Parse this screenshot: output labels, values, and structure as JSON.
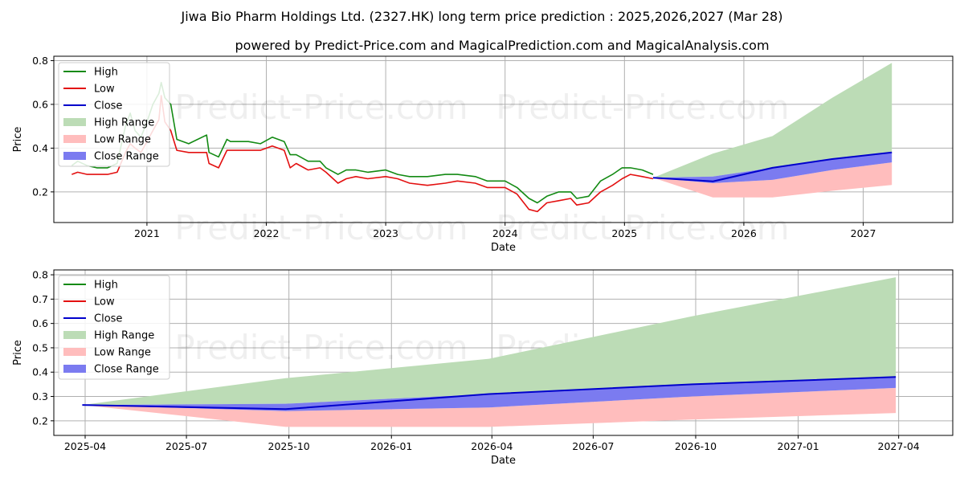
{
  "title": "Jiwa Bio Pharm Holdings Ltd. (2327.HK) long term price prediction : 2025,2026,2027 (Mar 28)",
  "subtitle": "powered by Predict-Price.com and MagicalPrediction.com and MagicalAnalysis.com",
  "watermark": "Predict-Price.com",
  "colors": {
    "high": "#138a13",
    "low": "#e31010",
    "close": "#0000cc",
    "high_range": "#bcdcb6",
    "low_range": "#ffbdbd",
    "close_range": "#7b7bf0",
    "grid": "#b0b0b0"
  },
  "chart_data": [
    {
      "type": "line",
      "name": "history-and-forecast",
      "xlabel": "Date",
      "ylabel": "Price",
      "xlim": [
        2020.22,
        2027.75
      ],
      "ylim": [
        0.06,
        0.82
      ],
      "x_ticks": [
        2021,
        2022,
        2023,
        2024,
        2025,
        2026,
        2027
      ],
      "x_tick_labels": [
        "2021",
        "2022",
        "2023",
        "2024",
        "2025",
        "2026",
        "2027"
      ],
      "y_ticks": [
        0.2,
        0.4,
        0.6,
        0.8
      ],
      "y_tick_labels": [
        "0.2",
        "0.4",
        "0.6",
        "0.8"
      ],
      "legend": [
        "High",
        "Low",
        "Close",
        "High Range",
        "Low Range",
        "Close Range"
      ],
      "legend_position": "upper-left",
      "history": {
        "date": [
          2020.37,
          2020.42,
          2020.5,
          2020.58,
          2020.67,
          2020.75,
          2020.82,
          2020.86,
          2020.9,
          2020.95,
          2021.0,
          2021.05,
          2021.1,
          2021.12,
          2021.15,
          2021.2,
          2021.25,
          2021.35,
          2021.5,
          2021.52,
          2021.6,
          2021.67,
          2021.7,
          2021.75,
          2021.85,
          2021.95,
          2022.05,
          2022.15,
          2022.2,
          2022.25,
          2022.35,
          2022.45,
          2022.5,
          2022.6,
          2022.67,
          2022.75,
          2022.85,
          2023.0,
          2023.1,
          2023.2,
          2023.35,
          2023.5,
          2023.6,
          2023.75,
          2023.85,
          2024.0,
          2024.1,
          2024.2,
          2024.27,
          2024.35,
          2024.45,
          2024.55,
          2024.6,
          2024.7,
          2024.8,
          2024.9,
          2024.98,
          2025.05,
          2025.15,
          2025.24
        ],
        "low": [
          0.28,
          0.29,
          0.28,
          0.28,
          0.28,
          0.29,
          0.38,
          0.42,
          0.4,
          0.38,
          0.43,
          0.48,
          0.53,
          0.64,
          0.52,
          0.48,
          0.39,
          0.38,
          0.38,
          0.33,
          0.31,
          0.39,
          0.39,
          0.39,
          0.39,
          0.39,
          0.41,
          0.39,
          0.31,
          0.33,
          0.3,
          0.31,
          0.29,
          0.24,
          0.26,
          0.27,
          0.26,
          0.27,
          0.26,
          0.24,
          0.23,
          0.24,
          0.25,
          0.24,
          0.22,
          0.22,
          0.19,
          0.12,
          0.11,
          0.15,
          0.16,
          0.17,
          0.14,
          0.15,
          0.2,
          0.23,
          0.26,
          0.28,
          0.27,
          0.26
        ],
        "high": [
          0.32,
          0.34,
          0.32,
          0.31,
          0.31,
          0.33,
          0.5,
          0.56,
          0.48,
          0.45,
          0.52,
          0.6,
          0.65,
          0.7,
          0.63,
          0.6,
          0.44,
          0.42,
          0.46,
          0.38,
          0.36,
          0.44,
          0.43,
          0.43,
          0.43,
          0.42,
          0.45,
          0.43,
          0.37,
          0.37,
          0.34,
          0.34,
          0.31,
          0.28,
          0.3,
          0.3,
          0.29,
          0.3,
          0.28,
          0.27,
          0.27,
          0.28,
          0.28,
          0.27,
          0.25,
          0.25,
          0.22,
          0.17,
          0.15,
          0.18,
          0.2,
          0.2,
          0.17,
          0.18,
          0.25,
          0.28,
          0.31,
          0.31,
          0.3,
          0.28
        ]
      },
      "forecast": {
        "date": [
          2025.24,
          2025.74,
          2026.24,
          2026.74,
          2027.24
        ],
        "close": [
          0.265,
          0.248,
          0.31,
          0.35,
          0.38
        ],
        "close_range_low": [
          0.265,
          0.24,
          0.255,
          0.3,
          0.335
        ],
        "close_range_high": [
          0.265,
          0.27,
          0.31,
          0.35,
          0.38
        ],
        "high_range": [
          0.265,
          0.375,
          0.455,
          0.63,
          0.79
        ],
        "low_range": [
          0.265,
          0.175,
          0.175,
          0.205,
          0.232
        ]
      }
    },
    {
      "type": "area",
      "name": "forecast-zoom",
      "xlabel": "Date",
      "ylabel": "Price",
      "xlim": [
        2025.17,
        2027.38
      ],
      "ylim": [
        0.14,
        0.82
      ],
      "x_ticks": [
        2025.247,
        2025.496,
        2025.748,
        2026.0,
        2026.247,
        2026.496,
        2026.748,
        2027.0,
        2027.247
      ],
      "x_tick_labels": [
        "2025-04",
        "2025-07",
        "2025-10",
        "2026-01",
        "2026-04",
        "2026-07",
        "2026-10",
        "2027-01",
        "2027-04"
      ],
      "y_ticks": [
        0.2,
        0.3,
        0.4,
        0.5,
        0.6,
        0.7,
        0.8
      ],
      "y_tick_labels": [
        "0.2",
        "0.3",
        "0.4",
        "0.5",
        "0.6",
        "0.7",
        "0.8"
      ],
      "legend": [
        "High",
        "Low",
        "Close",
        "High Range",
        "Low Range",
        "Close Range"
      ],
      "legend_position": "upper-left",
      "forecast": {
        "date": [
          2025.24,
          2025.74,
          2026.24,
          2026.74,
          2027.24
        ],
        "close": [
          0.265,
          0.248,
          0.31,
          0.35,
          0.38
        ],
        "close_range_low": [
          0.265,
          0.24,
          0.255,
          0.3,
          0.335
        ],
        "close_range_high": [
          0.265,
          0.27,
          0.31,
          0.35,
          0.38
        ],
        "high_range": [
          0.265,
          0.375,
          0.455,
          0.63,
          0.79
        ],
        "low_range": [
          0.265,
          0.175,
          0.175,
          0.205,
          0.232
        ]
      }
    }
  ]
}
